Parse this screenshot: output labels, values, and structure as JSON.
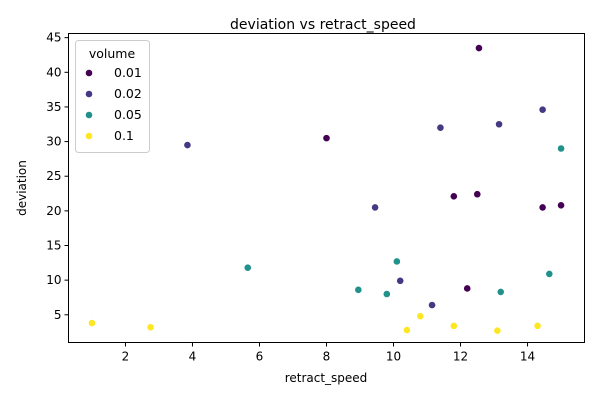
{
  "chart_data": {
    "type": "scatter",
    "title": "deviation vs retract_speed",
    "xlabel": "retract_speed",
    "ylabel": "deviation",
    "xlim": [
      0.3,
      15.7
    ],
    "ylim": [
      1.0,
      45.6
    ],
    "xticks": [
      2,
      4,
      6,
      8,
      10,
      12,
      14
    ],
    "yticks": [
      5,
      10,
      15,
      20,
      25,
      30,
      35,
      40,
      45
    ],
    "grid": false,
    "legend": {
      "title": "volume",
      "placement": "top-left"
    },
    "series": [
      {
        "name": "0.01",
        "color": "#440154",
        "points": [
          {
            "x": 12.55,
            "y": 43.5
          },
          {
            "x": 8.0,
            "y": 30.5
          },
          {
            "x": 11.8,
            "y": 22.1
          },
          {
            "x": 12.5,
            "y": 22.4
          },
          {
            "x": 14.45,
            "y": 20.5
          },
          {
            "x": 15.0,
            "y": 20.8
          },
          {
            "x": 12.2,
            "y": 8.8
          }
        ]
      },
      {
        "name": "0.02",
        "color": "#443983",
        "points": [
          {
            "x": 14.45,
            "y": 34.6
          },
          {
            "x": 13.15,
            "y": 32.5
          },
          {
            "x": 11.4,
            "y": 32.0
          },
          {
            "x": 3.85,
            "y": 29.5
          },
          {
            "x": 9.45,
            "y": 20.5
          },
          {
            "x": 10.2,
            "y": 9.9
          },
          {
            "x": 11.15,
            "y": 6.4
          }
        ]
      },
      {
        "name": "0.05",
        "color": "#21918c",
        "points": [
          {
            "x": 15.0,
            "y": 29.0
          },
          {
            "x": 10.1,
            "y": 12.7
          },
          {
            "x": 5.65,
            "y": 11.8
          },
          {
            "x": 14.65,
            "y": 10.9
          },
          {
            "x": 8.95,
            "y": 8.6
          },
          {
            "x": 9.8,
            "y": 8.0
          },
          {
            "x": 13.2,
            "y": 8.3
          }
        ]
      },
      {
        "name": "0.1",
        "color": "#fde725",
        "points": [
          {
            "x": 1.0,
            "y": 3.8
          },
          {
            "x": 2.75,
            "y": 3.2
          },
          {
            "x": 10.4,
            "y": 2.8
          },
          {
            "x": 10.8,
            "y": 4.8
          },
          {
            "x": 11.8,
            "y": 3.4
          },
          {
            "x": 13.1,
            "y": 2.7
          },
          {
            "x": 14.3,
            "y": 3.4
          }
        ]
      }
    ]
  }
}
